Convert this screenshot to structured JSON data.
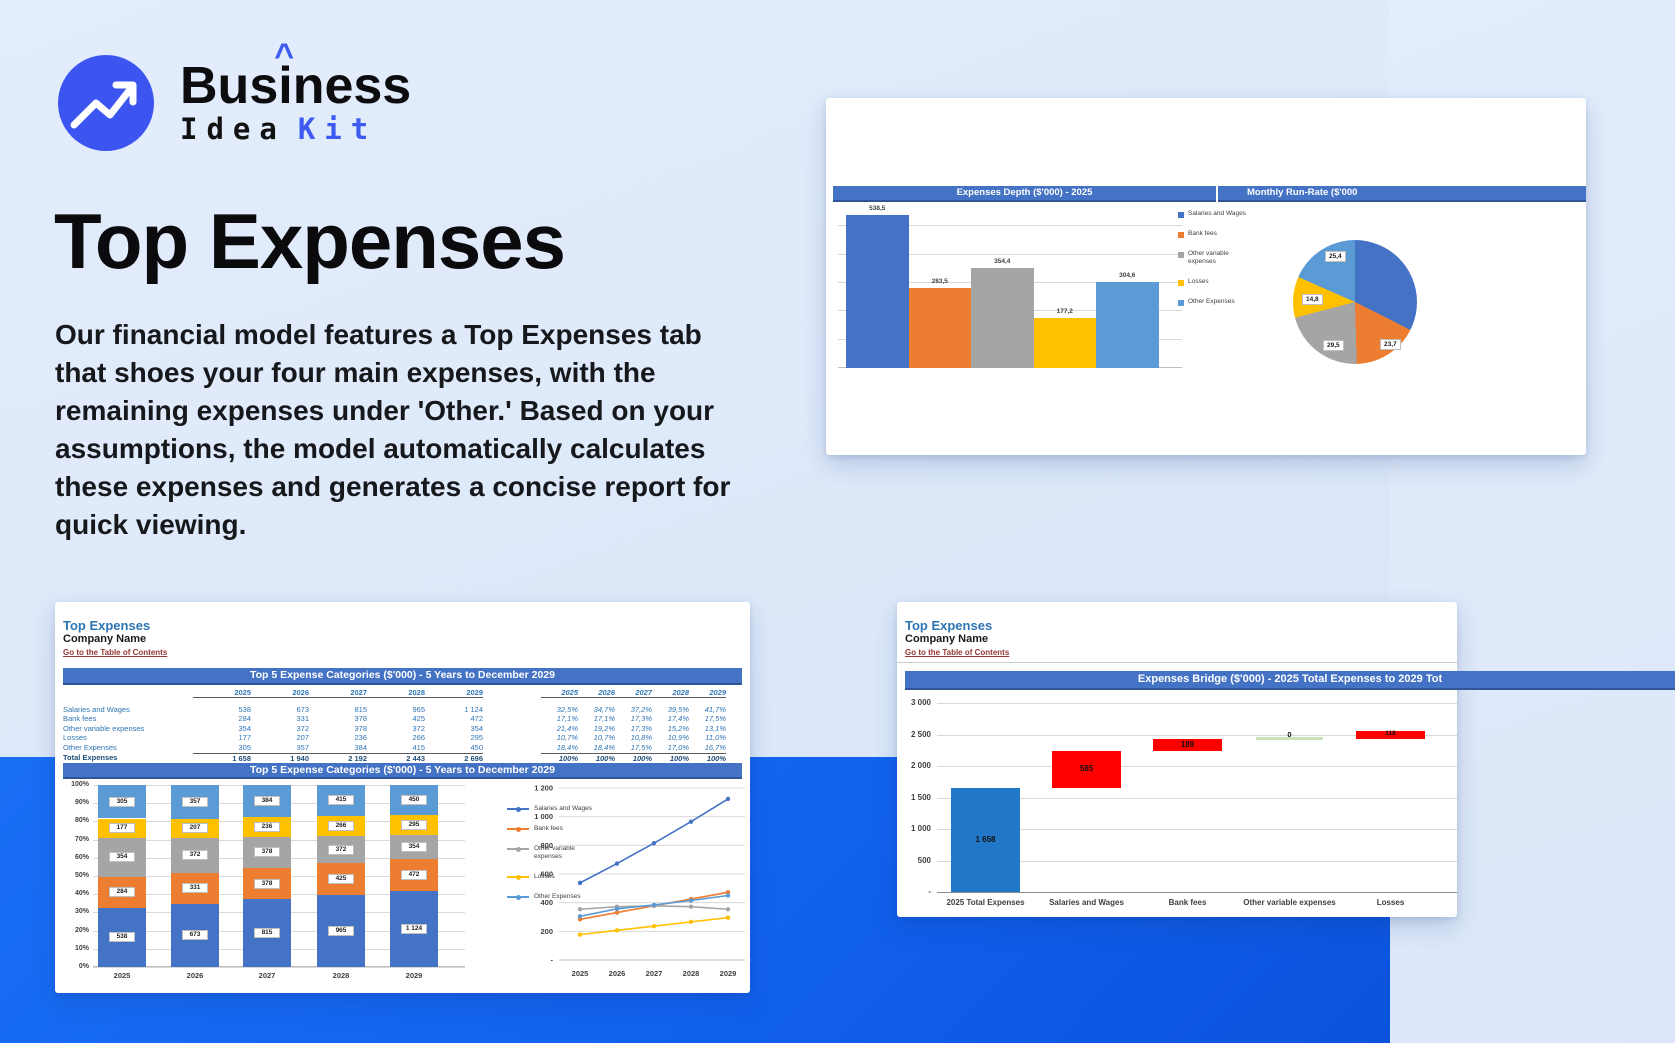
{
  "logo": {
    "brand_top": {
      "pre": "Bus",
      "i": "i",
      "post": "ness"
    },
    "caret": "^",
    "brand_bottom": {
      "word1": "Idea",
      "word2": "Kit"
    }
  },
  "hero": {
    "title": "Top Expenses",
    "description": "Our financial model features a Top Expenses tab that shoes your four main expenses, with the remaining expenses under 'Other.' Based on your assumptions, the model automatically calculates these expenses and generates a concise report for quick viewing."
  },
  "colors": {
    "accent_blue": "#3d5af1",
    "logo_blue": "#3d55f0",
    "band_blue": "#1363ef",
    "excel_header_bg": "#4472c4",
    "excel_blue_text": "#2e75b6",
    "link_red": "#953735",
    "waterfall_total_blue": "#2278c8",
    "waterfall_red": "#ff0000",
    "waterfall_zero_green": "#c9e3b2",
    "series_palette": [
      "#4472c4",
      "#ed7d31",
      "#a5a5a5",
      "#ffc000",
      "#5b9bd5"
    ]
  },
  "depth_card": {
    "header_left": "Expenses Depth ($'000) - 2025",
    "header_right": "Monthly Run-Rate ($'000",
    "chart_data": {
      "type": "bar",
      "categories": [
        "Salaries and Wages",
        "Bank fees",
        "Other variable expenses",
        "Losses",
        "Other Expenses"
      ],
      "values": [
        538.5,
        283.5,
        354.4,
        177.2,
        304.6
      ],
      "labels": [
        "538,5",
        "283,5",
        "354,4",
        "177,2",
        "304,6"
      ],
      "colors": [
        "#4472c4",
        "#ed7d31",
        "#a5a5a5",
        "#ffc000",
        "#5b9bd5"
      ],
      "ylim": [
        0,
        600
      ],
      "gridline_step": 100,
      "legend_position": "right"
    },
    "pie_chart_data": {
      "type": "pie",
      "slices": [
        {
          "name": "Salaries and Wages",
          "value": 44.8,
          "color": "#4472c4",
          "label": ""
        },
        {
          "name": "Bank fees",
          "value": 23.7,
          "color": "#ed7d31",
          "label": "23,7"
        },
        {
          "name": "Other variable expenses",
          "value": 29.5,
          "color": "#a5a5a5",
          "label": "29,5"
        },
        {
          "name": "Losses",
          "value": 14.8,
          "color": "#ffc000",
          "label": "14,8"
        },
        {
          "name": "Other Expenses",
          "value": 25.4,
          "color": "#5b9bd5",
          "label": "25,4"
        }
      ]
    }
  },
  "top5_card": {
    "title": "Top Expenses",
    "company": "Company Name",
    "link": "Go to the Table of Contents",
    "table_header": "Top 5 Expense Categories ($'000) - 5 Years to December 2029",
    "chart_header": "Top 5 Expense Categories ($'000) - 5 Years to December 2029",
    "years": [
      "2025",
      "2026",
      "2027",
      "2028",
      "2029"
    ],
    "rows": [
      {
        "name": "Salaries and Wages",
        "values": [
          "538",
          "673",
          "815",
          "965",
          "1 124"
        ],
        "pct": [
          "32,5%",
          "34,7%",
          "37,2%",
          "39,5%",
          "41,7%"
        ]
      },
      {
        "name": "Bank fees",
        "values": [
          "284",
          "331",
          "378",
          "425",
          "472"
        ],
        "pct": [
          "17,1%",
          "17,1%",
          "17,3%",
          "17,4%",
          "17,5%"
        ]
      },
      {
        "name": "Other variable expenses",
        "values": [
          "354",
          "372",
          "378",
          "372",
          "354"
        ],
        "pct": [
          "21,4%",
          "19,2%",
          "17,3%",
          "15,2%",
          "13,1%"
        ]
      },
      {
        "name": "Losses",
        "values": [
          "177",
          "207",
          "236",
          "266",
          "295"
        ],
        "pct": [
          "10,7%",
          "10,7%",
          "10,8%",
          "10,9%",
          "11,0%"
        ]
      },
      {
        "name": "Other Expenses",
        "values": [
          "305",
          "357",
          "384",
          "415",
          "450"
        ],
        "pct": [
          "18,4%",
          "18,4%",
          "17,5%",
          "17,0%",
          "16,7%"
        ]
      }
    ],
    "total_row": {
      "name": "Total Expenses",
      "values": [
        "1 658",
        "1 940",
        "2 192",
        "2 443",
        "2 696"
      ],
      "pct": [
        "100%",
        "100%",
        "100%",
        "100%",
        "100%"
      ]
    },
    "stacked_chart_data": {
      "type": "bar",
      "stacked_percent": true,
      "categories": [
        "2025",
        "2026",
        "2027",
        "2028",
        "2029"
      ],
      "y_ticks": [
        "100%",
        "90%",
        "80%",
        "70%",
        "60%",
        "50%",
        "40%",
        "30%",
        "20%",
        "10%",
        "0%"
      ],
      "series": [
        {
          "name": "Salaries and Wages",
          "color": "#4472c4",
          "values": [
            538,
            673,
            815,
            965,
            1124
          ],
          "labels": [
            "538",
            "673",
            "815",
            "965",
            "1 124"
          ]
        },
        {
          "name": "Bank fees",
          "color": "#ed7d31",
          "values": [
            284,
            331,
            378,
            425,
            472
          ],
          "labels": [
            "284",
            "331",
            "378",
            "425",
            "472"
          ]
        },
        {
          "name": "Other variable expenses",
          "color": "#a5a5a5",
          "values": [
            354,
            372,
            378,
            372,
            354
          ],
          "labels": [
            "354",
            "372",
            "378",
            "372",
            "354"
          ]
        },
        {
          "name": "Losses",
          "color": "#ffc000",
          "values": [
            177,
            207,
            236,
            266,
            295
          ],
          "labels": [
            "177",
            "207",
            "236",
            "266",
            "295"
          ]
        },
        {
          "name": "Other Expenses",
          "color": "#5b9bd5",
          "values": [
            305,
            357,
            384,
            415,
            450
          ],
          "labels": [
            "305",
            "357",
            "384",
            "415",
            "450"
          ]
        }
      ]
    },
    "line_chart_data": {
      "type": "line",
      "x": [
        "2025",
        "2026",
        "2027",
        "2028",
        "2029"
      ],
      "ylim": [
        0,
        1200
      ],
      "y_ticks": [
        "1 200",
        "1 000",
        "800",
        "600",
        "400",
        "200",
        "-"
      ],
      "series": [
        {
          "name": "Salaries and Wages",
          "color": "#4472c4",
          "values": [
            538,
            673,
            815,
            965,
            1124
          ]
        },
        {
          "name": "Bank fees",
          "color": "#ed7d31",
          "values": [
            284,
            331,
            378,
            425,
            472
          ]
        },
        {
          "name": "Other variable expenses",
          "color": "#a5a5a5",
          "values": [
            354,
            372,
            378,
            372,
            354
          ]
        },
        {
          "name": "Losses",
          "color": "#ffc000",
          "values": [
            177,
            207,
            236,
            266,
            295
          ]
        },
        {
          "name": "Other Expenses",
          "color": "#5b9bd5",
          "values": [
            305,
            357,
            384,
            415,
            450
          ]
        }
      ]
    }
  },
  "bridge_card": {
    "title": "Top Expenses",
    "company": "Company Name",
    "link": "Go to the Table of Contents",
    "chart_header": "Expenses Bridge ($'000) - 2025 Total Expenses to 2029 Tot",
    "chart_data": {
      "type": "waterfall",
      "ylim": [
        0,
        3000
      ],
      "y_ticks": [
        "3 000",
        "2 500",
        "2 000",
        "1 500",
        "1 000",
        "500",
        "-"
      ],
      "bars": [
        {
          "category": "2025 Total Expenses",
          "label": "1 658",
          "from": 0,
          "to": 1658,
          "color": "#2278c8"
        },
        {
          "category": "Salaries and Wages",
          "label": "585",
          "from": 1658,
          "to": 2243,
          "color": "#ff0000"
        },
        {
          "category": "Bank fees",
          "label": "189",
          "from": 2243,
          "to": 2432,
          "color": "#ff0000"
        },
        {
          "category": "Other variable expenses",
          "label": "0",
          "from": 2432,
          "to": 2432,
          "color": "#c9e3b2"
        },
        {
          "category": "Losses",
          "label": "118",
          "from": 2432,
          "to": 2550,
          "color": "#ff0000"
        }
      ]
    }
  }
}
